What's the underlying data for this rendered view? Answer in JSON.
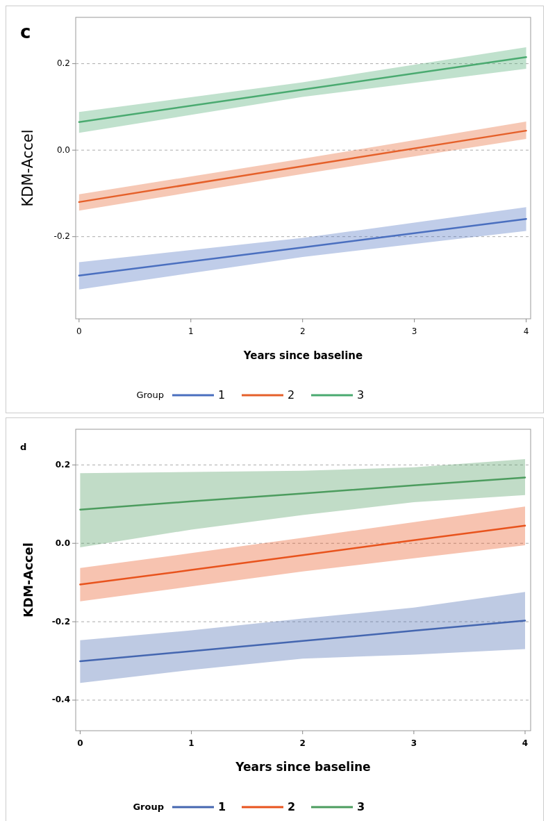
{
  "chart_data": [
    {
      "type": "line",
      "title": "c",
      "xlabel": "Years since baseline",
      "ylabel": "KDM-Accel",
      "legend_title": "Group",
      "legend": "bottom",
      "grid": "y",
      "x": [
        0,
        2,
        4
      ],
      "xlim": [
        -0.03,
        4.04
      ],
      "ylim": [
        -0.39,
        0.307
      ],
      "xticks": [
        0,
        1,
        2,
        3,
        4
      ],
      "yticks": [
        -0.2,
        {
          "value": 0,
          "label": "0.0"
        },
        0.2
      ],
      "series": [
        {
          "name": "1",
          "color": "#4a6fbf",
          "values": [
            -0.29,
            -0.225,
            -0.159
          ],
          "lower": [
            -0.322,
            -0.247,
            -0.187
          ],
          "upper": [
            -0.259,
            -0.203,
            -0.132
          ]
        },
        {
          "name": "2",
          "color": "#e5602a",
          "values": [
            -0.12,
            -0.037,
            0.045
          ],
          "lower": [
            -0.14,
            -0.055,
            0.026
          ],
          "upper": [
            -0.102,
            -0.02,
            0.066
          ]
        },
        {
          "name": "3",
          "color": "#4aaa70",
          "values": [
            0.065,
            0.14,
            0.215
          ],
          "lower": [
            0.04,
            0.123,
            0.188
          ],
          "upper": [
            0.088,
            0.157,
            0.238
          ]
        }
      ]
    },
    {
      "type": "line",
      "title": "d",
      "xlabel": "Years since baseline",
      "ylabel": "KDM-Accel",
      "legend_title": "Group",
      "legend": "bottom",
      "grid": "y",
      "x": [
        0,
        1,
        2,
        3,
        4
      ],
      "xlim": [
        -0.04,
        4.05
      ],
      "ylim": [
        -0.478,
        0.291
      ],
      "xticks": [
        0,
        1,
        2,
        3,
        4
      ],
      "yticks": [
        -0.4,
        -0.2,
        {
          "value": 0,
          "label": "0.0"
        },
        0.2
      ],
      "series": [
        {
          "name": "1",
          "color": "#4466b0",
          "values": [
            -0.301,
            -0.275,
            -0.249,
            -0.223,
            -0.197
          ],
          "lower": [
            -0.356,
            -0.323,
            -0.294,
            -0.284,
            -0.27
          ],
          "upper": [
            -0.247,
            -0.222,
            -0.192,
            -0.164,
            -0.124
          ]
        },
        {
          "name": "2",
          "color": "#e8531d",
          "values": [
            -0.105,
            -0.068,
            -0.03,
            0.008,
            0.045
          ],
          "lower": [
            -0.148,
            -0.11,
            -0.072,
            -0.038,
            -0.005
          ],
          "upper": [
            -0.063,
            -0.025,
            0.014,
            0.054,
            0.094
          ]
        },
        {
          "name": "3",
          "color": "#4c9c5e",
          "values": [
            0.086,
            0.107,
            0.127,
            0.148,
            0.168
          ],
          "lower": [
            -0.01,
            0.035,
            0.072,
            0.105,
            0.123
          ],
          "upper": [
            0.179,
            0.182,
            0.185,
            0.194,
            0.215
          ]
        }
      ]
    }
  ]
}
